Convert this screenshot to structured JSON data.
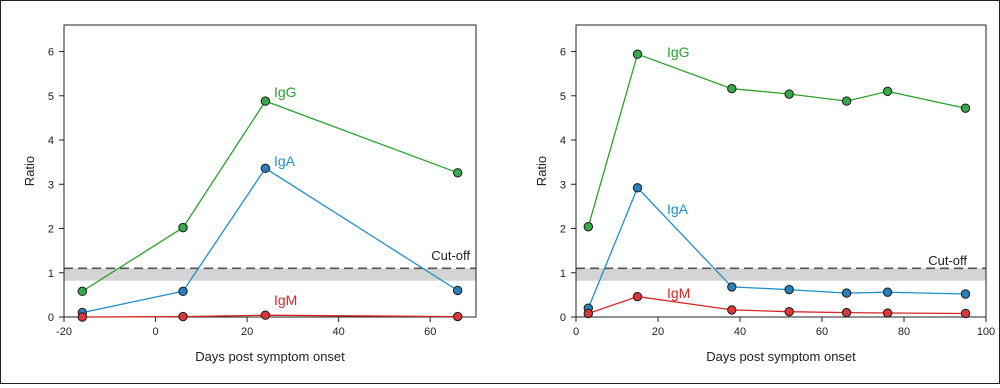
{
  "chart_data": [
    {
      "type": "line",
      "xlabel": "Days post symptom onset",
      "ylabel": "Ratio",
      "xlim": [
        -20,
        70
      ],
      "ylim": [
        0,
        6.6
      ],
      "xticks": [
        -20,
        0,
        20,
        40,
        60
      ],
      "yticks": [
        0,
        1,
        2,
        3,
        4,
        5,
        6
      ],
      "cutoff": {
        "label": "Cut-off",
        "value": 1.1,
        "band": [
          0.82,
          1.1
        ]
      },
      "series": [
        {
          "name": "IgG",
          "color": "#2ca02c",
          "marker": "#3aa84a",
          "x": [
            -16,
            6,
            24,
            66
          ],
          "y": [
            0.58,
            2.02,
            4.88,
            3.26
          ]
        },
        {
          "name": "IgA",
          "color": "#1f8fc9",
          "marker": "#2a7fb8",
          "x": [
            -16,
            6,
            24,
            66
          ],
          "y": [
            0.1,
            0.58,
            3.36,
            0.6
          ]
        },
        {
          "name": "IgM",
          "color": "#d62728",
          "marker": "#d93838",
          "x": [
            -16,
            6,
            24,
            66
          ],
          "y": [
            0.0,
            0.01,
            0.04,
            0.01
          ]
        }
      ]
    },
    {
      "type": "line",
      "xlabel": "Days post symptom onset",
      "ylabel": "Ratio",
      "xlim": [
        0,
        100
      ],
      "ylim": [
        0,
        6.6
      ],
      "xticks": [
        0,
        20,
        40,
        60,
        80,
        100
      ],
      "yticks": [
        0,
        1,
        2,
        3,
        4,
        5,
        6
      ],
      "cutoff": {
        "label": "Cut-off",
        "value": 1.1,
        "band": [
          0.82,
          1.1
        ]
      },
      "series": [
        {
          "name": "IgG",
          "color": "#2ca02c",
          "marker": "#3aa84a",
          "x": [
            3,
            15,
            38,
            52,
            66,
            76,
            95
          ],
          "y": [
            2.04,
            5.94,
            5.16,
            5.04,
            4.88,
            5.1,
            4.72
          ]
        },
        {
          "name": "IgA",
          "color": "#1f8fc9",
          "marker": "#2a7fb8",
          "x": [
            3,
            15,
            38,
            52,
            66,
            76,
            95
          ],
          "y": [
            0.2,
            2.92,
            0.68,
            0.62,
            0.54,
            0.56,
            0.52
          ]
        },
        {
          "name": "IgM",
          "color": "#d62728",
          "marker": "#d93838",
          "x": [
            3,
            15,
            38,
            52,
            66,
            76,
            95
          ],
          "y": [
            0.08,
            0.46,
            0.16,
            0.12,
            0.1,
            0.09,
            0.08
          ]
        }
      ]
    }
  ]
}
